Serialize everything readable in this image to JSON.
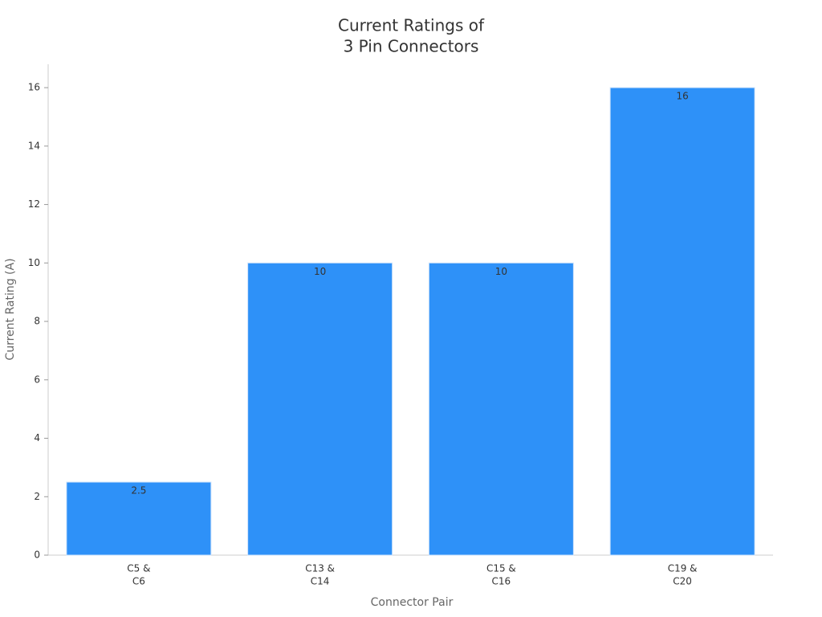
{
  "chart_data": {
    "type": "bar",
    "title": [
      "Current Ratings of",
      "3 Pin Connectors"
    ],
    "x_label": "Connector Pair",
    "y_label": "Current Rating (A)",
    "categories": [
      [
        "C5 &",
        "C6"
      ],
      [
        "C13 &",
        "C14"
      ],
      [
        "C15 &",
        "C16"
      ],
      [
        "C19 &",
        "C20"
      ]
    ],
    "values": [
      2.5,
      10,
      10,
      16
    ],
    "color": "#2e91f8",
    "ylim": [
      0,
      16.8
    ],
    "yticks": [
      0,
      2,
      4,
      6,
      8,
      10,
      12,
      14,
      16
    ],
    "grid": false
  }
}
